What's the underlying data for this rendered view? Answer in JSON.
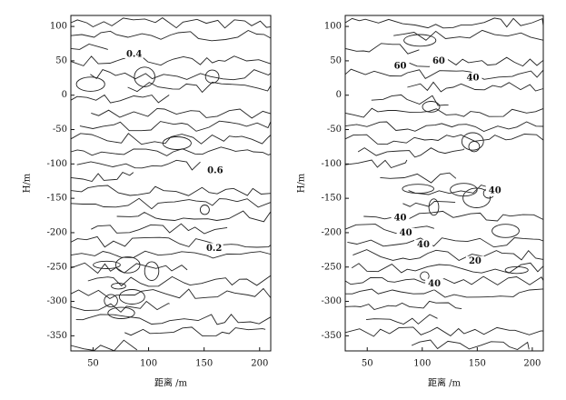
{
  "chart_data": [
    {
      "type": "contour",
      "x_label": "距离 /m",
      "y_label": "H/m",
      "xlim": [
        30,
        210
      ],
      "ylim": [
        -372,
        116
      ],
      "xticks": [
        50,
        100,
        150,
        200
      ],
      "yticks": [
        100,
        50,
        0,
        -50,
        -100,
        -150,
        -200,
        -250,
        -300,
        -350
      ],
      "contour_labels": [
        {
          "x": 87,
          "y": 59,
          "level": 0.4
        },
        {
          "x": 160,
          "y": -110,
          "level": 0.6
        },
        {
          "x": 159,
          "y": -223,
          "level": 0.2
        }
      ]
    },
    {
      "type": "contour",
      "x_label": "距离 /m",
      "y_label": "H/m",
      "xlim": [
        30,
        210
      ],
      "ylim": [
        -372,
        116
      ],
      "xticks": [
        50,
        100,
        150,
        200
      ],
      "yticks": [
        100,
        50,
        0,
        -50,
        -100,
        -150,
        -200,
        -250,
        -300,
        -350
      ],
      "contour_labels": [
        {
          "x": 80,
          "y": 42,
          "level": 60
        },
        {
          "x": 115,
          "y": 49,
          "level": 60
        },
        {
          "x": 146,
          "y": 25,
          "level": 40
        },
        {
          "x": 166,
          "y": -139,
          "level": 40
        },
        {
          "x": 80,
          "y": -179,
          "level": 40
        },
        {
          "x": 85,
          "y": -201,
          "level": 40
        },
        {
          "x": 101,
          "y": -218,
          "level": 40
        },
        {
          "x": 148,
          "y": -242,
          "level": 20
        },
        {
          "x": 111,
          "y": -275,
          "level": 40
        }
      ]
    }
  ]
}
